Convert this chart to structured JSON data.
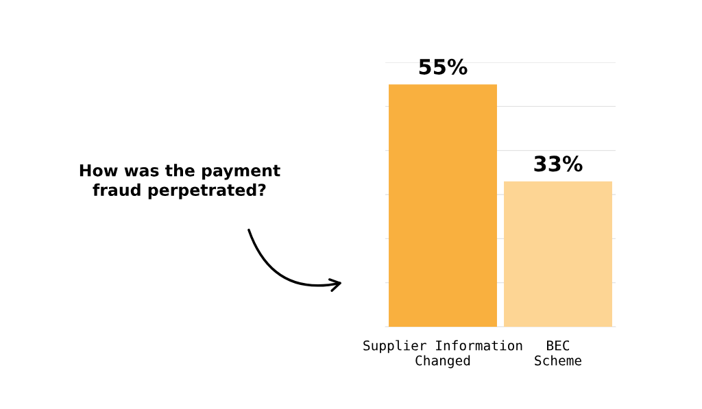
{
  "chart_data": {
    "type": "bar",
    "title": "How was the payment\nfraud perpetrated?",
    "categories": [
      "Supplier Information\nChanged",
      "BEC\nScheme"
    ],
    "values": [
      55,
      33
    ],
    "colors": [
      "#f9b03f",
      "#fdd594"
    ],
    "value_labels": [
      "55%",
      "33%"
    ],
    "relative": false,
    "ylim": [
      0,
      60
    ],
    "yticks": [
      {
        "value": 0,
        "label": null
      },
      {
        "value": 10,
        "label": null
      },
      {
        "value": 20,
        "label": null
      },
      {
        "value": 30,
        "label": null
      },
      {
        "value": 40,
        "label": null
      },
      {
        "value": 50,
        "label": null
      },
      {
        "value": 60,
        "label": null
      }
    ],
    "tick_labels": "x",
    "grid": "y",
    "legend": false
  }
}
